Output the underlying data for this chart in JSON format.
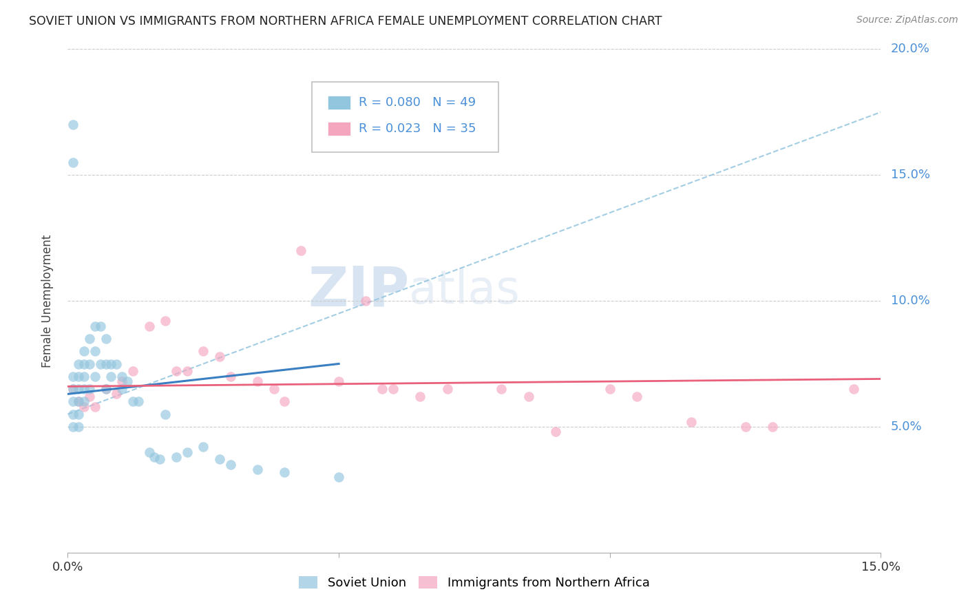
{
  "title": "SOVIET UNION VS IMMIGRANTS FROM NORTHERN AFRICA FEMALE UNEMPLOYMENT CORRELATION CHART",
  "source": "Source: ZipAtlas.com",
  "ylabel": "Female Unemployment",
  "xmin": 0.0,
  "xmax": 0.15,
  "ymin": 0.0,
  "ymax": 0.2,
  "yticks": [
    0.05,
    0.1,
    0.15,
    0.2
  ],
  "ytick_labels": [
    "5.0%",
    "10.0%",
    "15.0%",
    "20.0%"
  ],
  "legend1_label": "Soviet Union",
  "legend2_label": "Immigrants from Northern Africa",
  "R1": "0.080",
  "N1": "49",
  "R2": "0.023",
  "N2": "35",
  "color_blue": "#92c5de",
  "color_pink": "#f4a6bf",
  "color_blue_line": "#3a7fc1",
  "color_pink_line": "#e8607a",
  "color_dashed": "#92c5de",
  "color_axis_label": "#4a90d9",
  "color_title": "#222222",
  "watermark_zip": "ZIP",
  "watermark_atlas": "atlas",
  "soviet_x": [
    0.001,
    0.001,
    0.001,
    0.001,
    0.001,
    0.001,
    0.001,
    0.002,
    0.002,
    0.002,
    0.002,
    0.002,
    0.002,
    0.003,
    0.003,
    0.003,
    0.003,
    0.003,
    0.004,
    0.004,
    0.004,
    0.005,
    0.005,
    0.005,
    0.006,
    0.006,
    0.007,
    0.007,
    0.007,
    0.008,
    0.008,
    0.009,
    0.01,
    0.01,
    0.011,
    0.012,
    0.013,
    0.015,
    0.016,
    0.017,
    0.018,
    0.02,
    0.022,
    0.025,
    0.028,
    0.03,
    0.035,
    0.04,
    0.05
  ],
  "soviet_y": [
    0.17,
    0.155,
    0.07,
    0.065,
    0.06,
    0.055,
    0.05,
    0.075,
    0.07,
    0.065,
    0.06,
    0.055,
    0.05,
    0.08,
    0.075,
    0.07,
    0.065,
    0.06,
    0.085,
    0.075,
    0.065,
    0.09,
    0.08,
    0.07,
    0.09,
    0.075,
    0.085,
    0.075,
    0.065,
    0.075,
    0.07,
    0.075,
    0.07,
    0.065,
    0.068,
    0.06,
    0.06,
    0.04,
    0.038,
    0.037,
    0.055,
    0.038,
    0.04,
    0.042,
    0.037,
    0.035,
    0.033,
    0.032,
    0.03
  ],
  "nafr_x": [
    0.001,
    0.002,
    0.003,
    0.004,
    0.005,
    0.007,
    0.009,
    0.01,
    0.012,
    0.015,
    0.018,
    0.02,
    0.022,
    0.025,
    0.028,
    0.03,
    0.035,
    0.038,
    0.04,
    0.043,
    0.05,
    0.055,
    0.058,
    0.06,
    0.065,
    0.07,
    0.08,
    0.085,
    0.09,
    0.1,
    0.105,
    0.115,
    0.125,
    0.13,
    0.145
  ],
  "nafr_y": [
    0.065,
    0.06,
    0.058,
    0.062,
    0.058,
    0.065,
    0.063,
    0.068,
    0.072,
    0.09,
    0.092,
    0.072,
    0.072,
    0.08,
    0.078,
    0.07,
    0.068,
    0.065,
    0.06,
    0.12,
    0.068,
    0.1,
    0.065,
    0.065,
    0.062,
    0.065,
    0.065,
    0.062,
    0.048,
    0.065,
    0.062,
    0.052,
    0.05,
    0.05,
    0.065
  ],
  "blue_line_x0": 0.0,
  "blue_line_x1": 0.05,
  "blue_line_y0": 0.063,
  "blue_line_y1": 0.075,
  "pink_line_x0": 0.0,
  "pink_line_x1": 0.15,
  "pink_line_y0": 0.066,
  "pink_line_y1": 0.069,
  "dash_line_x0": 0.0,
  "dash_line_x1": 0.15,
  "dash_line_y0": 0.055,
  "dash_line_y1": 0.175
}
